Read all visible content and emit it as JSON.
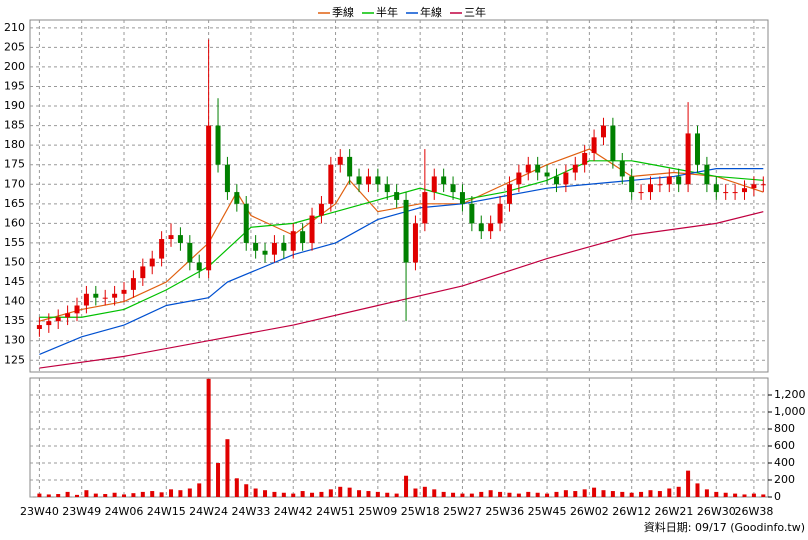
{
  "chart_data": {
    "type": "candlestick",
    "legend": "top",
    "grid": true,
    "up_color": "#e00000",
    "down_color": "#008000",
    "xlim": [
      -2,
      155
    ],
    "xticks": [
      {
        "value": 0,
        "label": "23W40"
      },
      {
        "value": 9,
        "label": "23W49"
      },
      {
        "value": 18,
        "label": "24W06"
      },
      {
        "value": 27,
        "label": "24W15"
      },
      {
        "value": 36,
        "label": "24W24"
      },
      {
        "value": 45,
        "label": "24W33"
      },
      {
        "value": 54,
        "label": "24W42"
      },
      {
        "value": 63,
        "label": "24W51"
      },
      {
        "value": 72,
        "label": "25W09"
      },
      {
        "value": 81,
        "label": "25W18"
      },
      {
        "value": 90,
        "label": "25W27"
      },
      {
        "value": 99,
        "label": "25W36"
      },
      {
        "value": 108,
        "label": "25W45"
      },
      {
        "value": 117,
        "label": "26W02"
      },
      {
        "value": 126,
        "label": "26W12"
      },
      {
        "value": 135,
        "label": "26W21"
      },
      {
        "value": 144,
        "label": "26W30"
      },
      {
        "value": 152,
        "label": "26W38"
      }
    ],
    "ylim": [
      122,
      212
    ],
    "yticks": [
      125,
      130,
      135,
      140,
      145,
      150,
      155,
      160,
      165,
      170,
      175,
      180,
      185,
      190,
      195,
      200,
      205,
      210
    ],
    "candles": {
      "x": [
        0,
        2,
        4,
        6,
        8,
        10,
        12,
        14,
        16,
        18,
        20,
        22,
        24,
        26,
        28,
        30,
        32,
        34,
        36,
        38,
        40,
        42,
        44,
        46,
        48,
        50,
        52,
        54,
        56,
        58,
        60,
        62,
        64,
        66,
        68,
        70,
        72,
        74,
        76,
        78,
        80,
        82,
        84,
        86,
        88,
        90,
        92,
        94,
        96,
        98,
        100,
        102,
        104,
        106,
        108,
        110,
        112,
        114,
        116,
        118,
        120,
        122,
        124,
        126,
        128,
        130,
        132,
        134,
        136,
        138,
        140,
        142,
        144,
        146,
        148,
        150,
        152,
        154
      ],
      "open": [
        133,
        134,
        135,
        136,
        137,
        139,
        142,
        141,
        141,
        142,
        143,
        146,
        149,
        151,
        156,
        157,
        155,
        150,
        148,
        185,
        175,
        168,
        165,
        155,
        153,
        152,
        155,
        153,
        158,
        155,
        162,
        165,
        175,
        177,
        172,
        170,
        172,
        170,
        168,
        166,
        150,
        160,
        168,
        172,
        170,
        168,
        165,
        160,
        158,
        160,
        165,
        170,
        173,
        175,
        173,
        172,
        170,
        173,
        175,
        178,
        182,
        185,
        176,
        172,
        168,
        168,
        170,
        170,
        172,
        170,
        183,
        175,
        170,
        168,
        168,
        168,
        169,
        170
      ],
      "high": [
        136,
        137,
        138,
        139,
        141,
        144,
        144,
        143,
        144,
        145,
        148,
        151,
        153,
        158,
        160,
        159,
        157,
        152,
        207,
        192,
        177,
        170,
        167,
        157,
        155,
        157,
        157,
        160,
        160,
        164,
        167,
        177,
        179,
        179,
        174,
        174,
        174,
        172,
        170,
        168,
        162,
        179,
        174,
        174,
        172,
        170,
        167,
        162,
        162,
        167,
        172,
        175,
        177,
        177,
        175,
        174,
        175,
        177,
        180,
        184,
        187,
        187,
        178,
        174,
        170,
        172,
        172,
        174,
        174,
        191,
        185,
        177,
        172,
        170,
        170,
        171,
        172,
        172
      ],
      "low": [
        131,
        132,
        133,
        134,
        135,
        137,
        139,
        139,
        139,
        140,
        141,
        144,
        147,
        149,
        154,
        153,
        148,
        146,
        146,
        173,
        166,
        163,
        153,
        151,
        150,
        150,
        151,
        151,
        153,
        153,
        160,
        163,
        173,
        170,
        168,
        168,
        168,
        166,
        164,
        135,
        148,
        158,
        166,
        168,
        166,
        163,
        158,
        156,
        156,
        158,
        163,
        168,
        171,
        171,
        170,
        168,
        168,
        171,
        173,
        176,
        180,
        174,
        170,
        166,
        166,
        166,
        168,
        168,
        168,
        168,
        173,
        168,
        166,
        166,
        166,
        166,
        167,
        168
      ],
      "close": [
        134,
        135,
        136,
        137,
        139,
        142,
        141,
        141,
        142,
        143,
        146,
        149,
        151,
        156,
        157,
        155,
        150,
        148,
        185,
        175,
        168,
        165,
        155,
        153,
        152,
        155,
        153,
        158,
        155,
        162,
        165,
        175,
        177,
        172,
        170,
        172,
        170,
        168,
        166,
        150,
        160,
        168,
        172,
        170,
        168,
        165,
        160,
        158,
        160,
        165,
        170,
        173,
        175,
        173,
        172,
        170,
        173,
        175,
        178,
        182,
        185,
        176,
        172,
        168,
        168,
        170,
        170,
        172,
        170,
        183,
        175,
        170,
        168,
        168,
        168,
        169,
        170,
        170
      ]
    },
    "series": [
      {
        "name": "季線",
        "color": "#e06010",
        "x": [
          0,
          9,
          18,
          27,
          36,
          42,
          45,
          54,
          63,
          66,
          72,
          81,
          90,
          99,
          108,
          117,
          126,
          135,
          144,
          154
        ],
        "values": [
          135,
          138,
          140,
          145,
          155,
          168,
          162,
          157,
          165,
          171,
          163,
          165,
          165,
          170,
          175,
          179,
          172,
          173,
          172,
          168
        ]
      },
      {
        "name": "半年",
        "color": "#00c000",
        "x": [
          0,
          9,
          18,
          27,
          36,
          45,
          54,
          63,
          72,
          81,
          90,
          99,
          108,
          117,
          126,
          135,
          144,
          154
        ],
        "values": [
          136,
          136,
          138,
          143,
          149,
          159,
          160,
          163,
          166,
          169,
          166,
          168,
          171,
          176,
          176,
          174,
          172,
          171
        ]
      },
      {
        "name": "年線",
        "color": "#0050d0",
        "x": [
          0,
          9,
          18,
          27,
          36,
          40,
          54,
          63,
          72,
          81,
          90,
          99,
          108,
          117,
          126,
          135,
          144,
          154
        ],
        "values": [
          126.5,
          131,
          134,
          139,
          141,
          145,
          152,
          155,
          161,
          164,
          165,
          167,
          169,
          170,
          171,
          172,
          174,
          174
        ]
      },
      {
        "name": "三年",
        "color": "#c00040",
        "x": [
          0,
          18,
          36,
          54,
          72,
          90,
          108,
          117,
          126,
          144,
          154
        ],
        "values": [
          123,
          126,
          130,
          134,
          139,
          144,
          151,
          154,
          157,
          160,
          163
        ]
      }
    ],
    "volume": {
      "color": "#e00000",
      "ylim": [
        0,
        1400
      ],
      "yticks": [
        0,
        200,
        400,
        600,
        800,
        {
          "value": 1000,
          "label": "1,000"
        },
        {
          "value": 1200,
          "label": "1,200"
        }
      ],
      "values": [
        40,
        30,
        35,
        60,
        25,
        80,
        40,
        35,
        50,
        30,
        45,
        60,
        70,
        55,
        90,
        80,
        100,
        160,
        1390,
        400,
        680,
        220,
        150,
        100,
        80,
        60,
        50,
        40,
        70,
        50,
        60,
        90,
        120,
        110,
        80,
        70,
        60,
        50,
        40,
        250,
        100,
        120,
        90,
        60,
        50,
        40,
        40,
        60,
        80,
        60,
        50,
        40,
        60,
        50,
        40,
        60,
        80,
        70,
        90,
        110,
        80,
        70,
        60,
        50,
        60,
        80,
        70,
        100,
        120,
        310,
        160,
        90,
        60,
        50,
        40,
        30,
        40,
        30
      ]
    },
    "source_note": "資料日期: 09/17 (Goodinfo.tw)"
  }
}
